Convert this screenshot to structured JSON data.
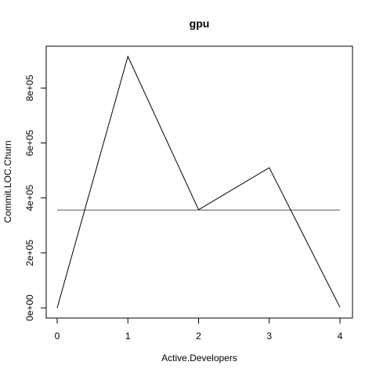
{
  "chart_data": {
    "type": "line",
    "title": "gpu",
    "xlabel": "Active.Developers",
    "ylabel": "Commit.LOC.Churn",
    "x": [
      0,
      1,
      2,
      3,
      4
    ],
    "series": [
      {
        "name": "Commit.LOC.Churn",
        "values": [
          0,
          915000,
          357000,
          510000,
          2000
        ]
      }
    ],
    "reference_line": {
      "orientation": "horizontal",
      "value": 356000
    },
    "xlim": [
      0,
      4
    ],
    "ylim": [
      0,
      915000
    ],
    "x_ticks": [
      0,
      1,
      2,
      3,
      4
    ],
    "x_tick_labels": [
      "0",
      "1",
      "2",
      "3",
      "4"
    ],
    "y_ticks": [
      0,
      200000,
      400000,
      600000,
      800000
    ],
    "y_tick_labels": [
      "0e+00",
      "2e+05",
      "4e+05",
      "6e+05",
      "8e+05"
    ],
    "grid": false
  }
}
